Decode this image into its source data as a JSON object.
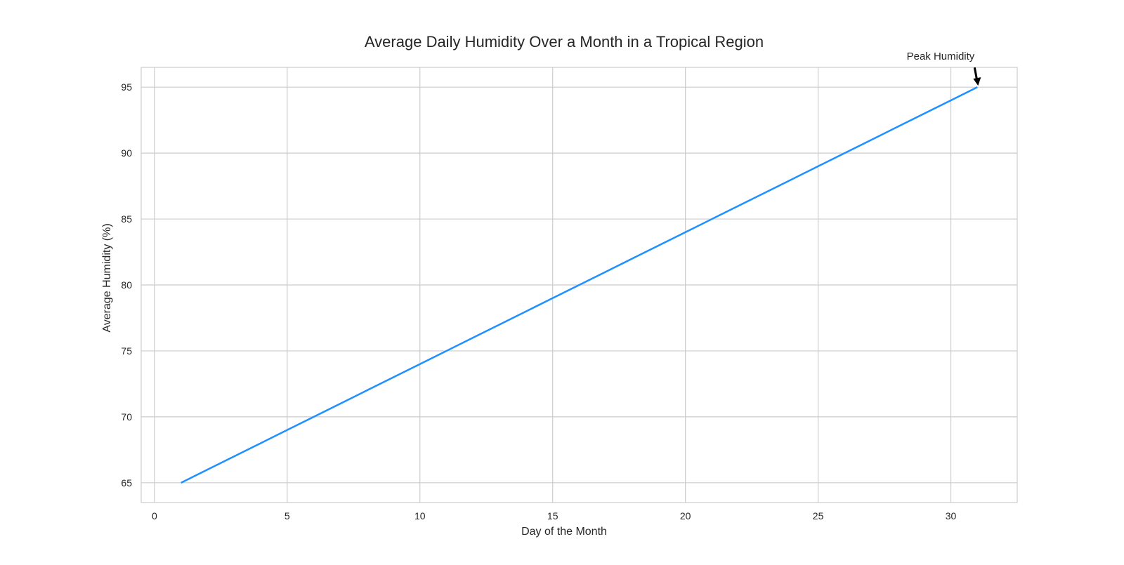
{
  "chart_data": {
    "type": "line",
    "title": "Average Daily Humidity Over a Month in a Tropical Region",
    "xlabel": "Day of the Month",
    "ylabel": "Average Humidity (%)",
    "xlim": [
      -0.5,
      32.5
    ],
    "ylim": [
      63.5,
      96.5
    ],
    "x_ticks": [
      0,
      5,
      10,
      15,
      20,
      25,
      30
    ],
    "y_ticks": [
      65,
      70,
      75,
      80,
      85,
      90,
      95
    ],
    "grid": true,
    "series": [
      {
        "color": "#1e90ff",
        "x": [
          1,
          2,
          3,
          4,
          5,
          6,
          7,
          8,
          9,
          10,
          11,
          12,
          13,
          14,
          15,
          16,
          17,
          18,
          19,
          20,
          21,
          22,
          23,
          24,
          25,
          26,
          27,
          28,
          29,
          30,
          31
        ],
        "y": [
          65,
          66,
          67,
          68,
          69,
          70,
          71,
          72,
          73,
          74,
          75,
          76,
          77,
          78,
          79,
          80,
          81,
          82,
          83,
          84,
          85,
          86,
          87,
          88,
          89,
          90,
          91,
          92,
          93,
          94,
          95
        ]
      }
    ],
    "annotations": [
      {
        "text": "Peak Humidity",
        "x": 31,
        "y": 95
      }
    ],
    "colors": {
      "grid": "#cccccc",
      "frame": "#cccccc",
      "text": "#262626",
      "arrow": "#000000"
    }
  }
}
